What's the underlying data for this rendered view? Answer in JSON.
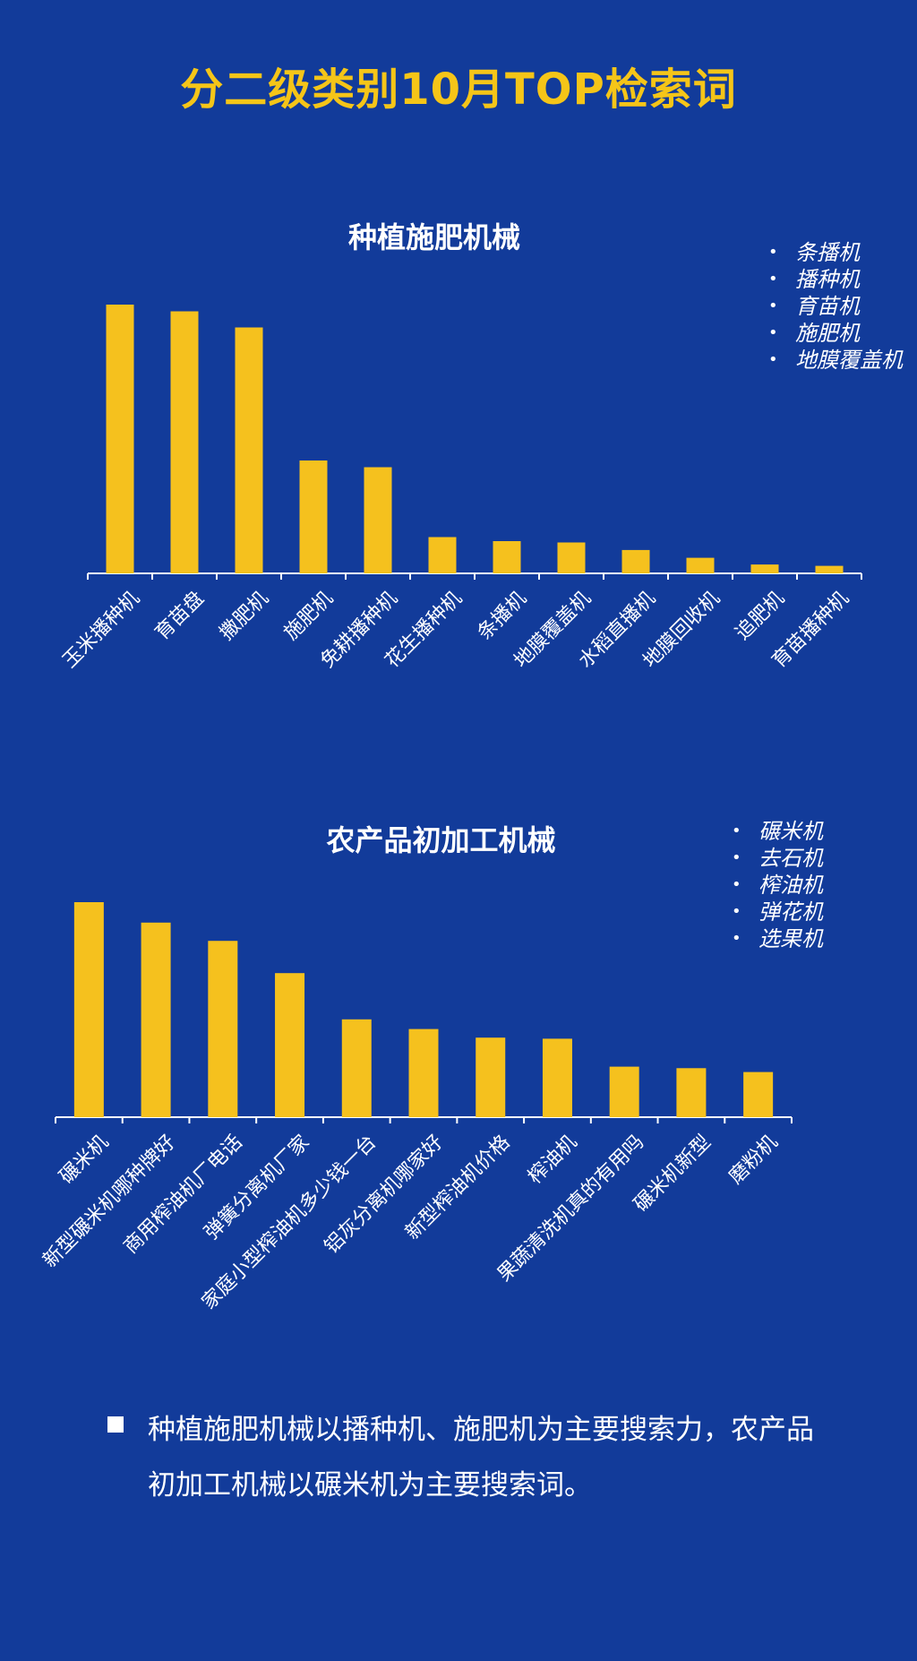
{
  "page": {
    "title": "分二级类别10月TOP检索词",
    "summary": "种植施肥机械以播种机、施肥机为主要搜索力，农产品初加工机械以碾米机为主要搜索词。"
  },
  "colors": {
    "background": "#123b9a",
    "bar": "#f5c11e",
    "title": "#f5c518",
    "axis": "#ffffff"
  },
  "chart_data": [
    {
      "type": "bar",
      "title": "种植施肥机械",
      "categories": [
        "玉米播种机",
        "育苗盘",
        "撒肥机",
        "施肥机",
        "免耕播种机",
        "花生播种机",
        "条播机",
        "地膜覆盖机",
        "水稻直播机",
        "地膜回收机",
        "追肥机",
        "育苗播种机"
      ],
      "values": [
        100,
        97.5,
        91.5,
        42,
        39.5,
        13.5,
        12,
        11.5,
        8.7,
        5.8,
        3.3,
        2.8
      ],
      "legend": [
        "条播机",
        "播种机",
        "育苗机",
        "施肥机",
        "地膜覆盖机"
      ],
      "legend_position": "top-right",
      "ylim": [
        0,
        100
      ],
      "grid": false,
      "xlabel": "",
      "ylabel": ""
    },
    {
      "type": "bar",
      "title": "农产品初加工机械",
      "categories": [
        "碾米机",
        "新型碾米机哪种牌好",
        "商用榨油机厂电话",
        "弹簧分离机厂家",
        "家庭小型榨油机多少钱一台",
        "铝灰分离机哪家好",
        "新型榨油机价格",
        "榨油机",
        "果蔬清洗机真的有用吗",
        "碾米机新型",
        "磨粉机"
      ],
      "values": [
        100,
        90.5,
        82,
        67,
        45.5,
        41,
        37,
        36.5,
        23.5,
        22.8,
        21
      ],
      "legend": [
        "碾米机",
        "去石机",
        "榨油机",
        "弹花机",
        "选果机"
      ],
      "legend_position": "top-right",
      "ylim": [
        0,
        100
      ],
      "grid": false,
      "xlabel": "",
      "ylabel": ""
    }
  ]
}
